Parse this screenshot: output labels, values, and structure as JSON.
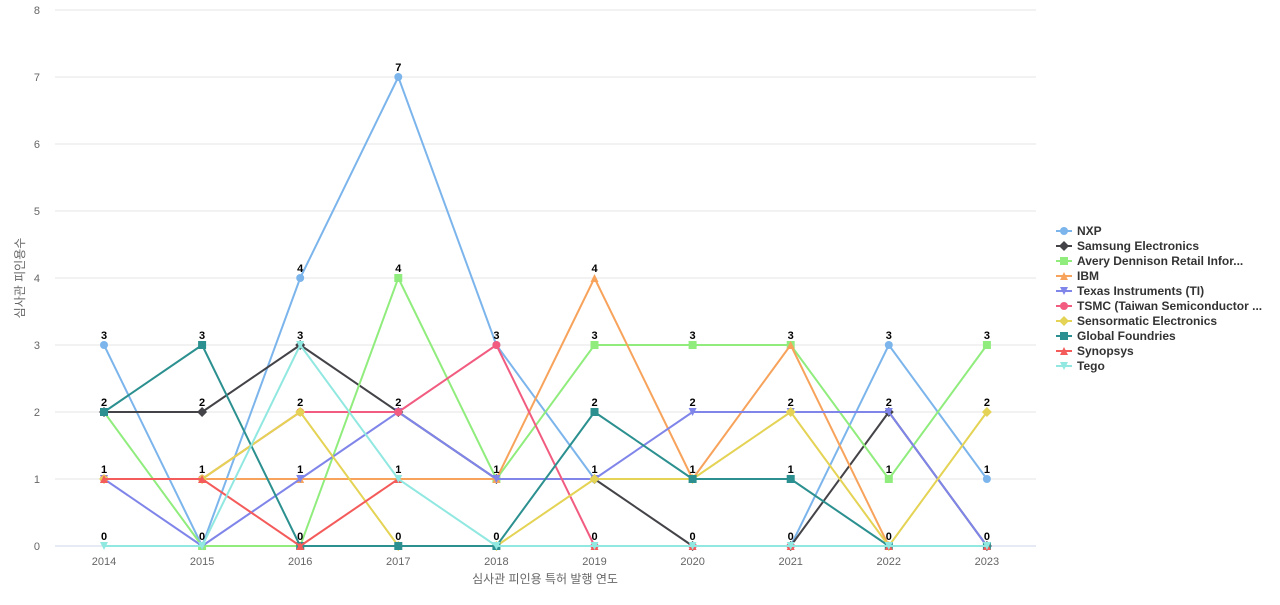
{
  "chart_data": {
    "type": "line",
    "title": "",
    "xlabel": "심사관 피인용 특허 발행 연도",
    "ylabel": "심사관 피인용수",
    "ylim": [
      0,
      8
    ],
    "yticks": [
      0,
      1,
      2,
      3,
      4,
      5,
      6,
      7,
      8
    ],
    "categories": [
      "2014",
      "2015",
      "2016",
      "2017",
      "2018",
      "2019",
      "2020",
      "2021",
      "2022",
      "2023"
    ],
    "grid": true,
    "legend_position": "right",
    "series": [
      {
        "name": "NXP",
        "color": "#7cb5ec",
        "marker": "circle",
        "values": [
          3,
          0,
          4,
          7,
          3,
          1,
          null,
          0,
          3,
          1
        ]
      },
      {
        "name": "Samsung Electronics",
        "color": "#434348",
        "marker": "diamond",
        "values": [
          2,
          2,
          3,
          2,
          1,
          1,
          0,
          0,
          2,
          0
        ]
      },
      {
        "name": "Avery Dennison Retail Infor...",
        "color": "#90ed7d",
        "marker": "square",
        "values": [
          2,
          0,
          0,
          4,
          1,
          3,
          3,
          3,
          1,
          3
        ]
      },
      {
        "name": "IBM",
        "color": "#f7a35c",
        "marker": "triangle",
        "values": [
          1,
          1,
          1,
          1,
          1,
          4,
          1,
          3,
          0,
          0
        ]
      },
      {
        "name": "Texas Instruments (TI)",
        "color": "#8085e9",
        "marker": "triangle-down",
        "values": [
          1,
          0,
          1,
          2,
          1,
          1,
          2,
          2,
          2,
          0
        ]
      },
      {
        "name": "TSMC (Taiwan Semiconductor ...",
        "color": "#f15c80",
        "marker": "circle",
        "values": [
          1,
          1,
          2,
          2,
          3,
          0,
          0,
          0,
          0,
          0
        ]
      },
      {
        "name": "Sensormatic Electronics",
        "color": "#e4d354",
        "marker": "diamond",
        "values": [
          1,
          1,
          2,
          0,
          0,
          1,
          1,
          2,
          0,
          2
        ]
      },
      {
        "name": "Global Foundries",
        "color": "#2b908f",
        "marker": "square",
        "values": [
          2,
          3,
          0,
          0,
          0,
          2,
          1,
          1,
          0,
          0
        ]
      },
      {
        "name": "Synopsys",
        "color": "#f45b5b",
        "marker": "triangle",
        "values": [
          1,
          1,
          0,
          1,
          null,
          0,
          0,
          0,
          0,
          0
        ]
      },
      {
        "name": "Tego",
        "color": "#91e8e1",
        "marker": "triangle-down",
        "values": [
          0,
          0,
          3,
          1,
          0,
          0,
          0,
          0,
          0,
          0
        ]
      }
    ],
    "data_labels": [
      {
        "category": "2014",
        "values": [
          3,
          2,
          1,
          0
        ]
      },
      {
        "category": "2015",
        "values": [
          3,
          2,
          1,
          0
        ]
      },
      {
        "category": "2016",
        "values": [
          4,
          3,
          2,
          1,
          0
        ]
      },
      {
        "category": "2017",
        "values": [
          7,
          4,
          2,
          1,
          0
        ]
      },
      {
        "category": "2018",
        "values": [
          3,
          1,
          0
        ]
      },
      {
        "category": "2019",
        "values": [
          4,
          3,
          2,
          1,
          0
        ]
      },
      {
        "category": "2020",
        "values": [
          3,
          2,
          1,
          0
        ]
      },
      {
        "category": "2021",
        "values": [
          3,
          2,
          1,
          0
        ]
      },
      {
        "category": "2022",
        "values": [
          3,
          2,
          1,
          0
        ]
      },
      {
        "category": "2023",
        "values": [
          3,
          2,
          1,
          0
        ]
      }
    ]
  }
}
